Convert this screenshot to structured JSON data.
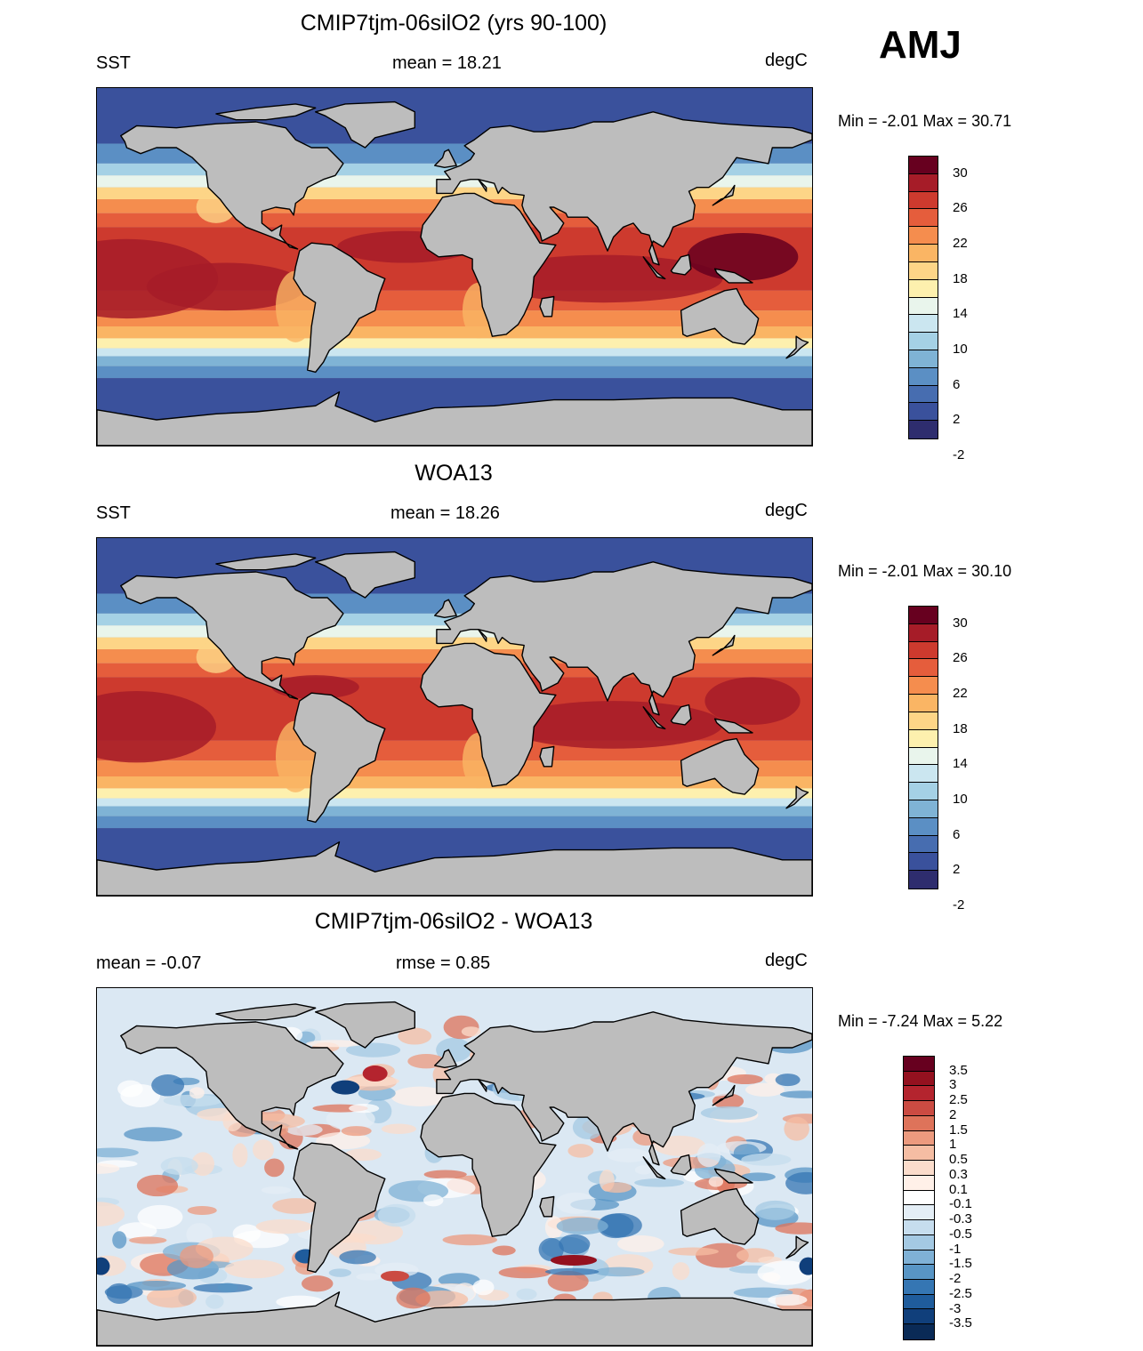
{
  "season": "AMJ",
  "units": "degC",
  "panels": [
    {
      "title": "CMIP7tjm-06silO2 (yrs 90-100)",
      "left_label": "SST",
      "center_label": "mean =  18.21",
      "right_label": "degC",
      "range_text": "Min =  -2.01 Max =  30.71",
      "colorbar": "sst"
    },
    {
      "title": "WOA13",
      "left_label": "SST",
      "center_label": "mean =  18.26",
      "right_label": "degC",
      "range_text": "Min =  -2.01 Max =  30.10",
      "colorbar": "sst"
    },
    {
      "title": "CMIP7tjm-06silO2 - WOA13",
      "left_label": "mean =  -0.07",
      "center_label": "rmse =   0.85",
      "right_label": "degC",
      "range_text": "Min =  -7.24 Max =   5.22",
      "colorbar": "diff"
    }
  ],
  "colorbars": {
    "sst": {
      "colors": [
        "#67001f",
        "#a61c28",
        "#cd3a2e",
        "#e55d3c",
        "#f58d4e",
        "#fab564",
        "#fdd587",
        "#fdf0ae",
        "#e9f5ec",
        "#cbe6f0",
        "#a5d1e5",
        "#7fb3d5",
        "#5b8fc4",
        "#476db0",
        "#3a519c",
        "#2e2d6e"
      ],
      "labels": [
        "30",
        "26",
        "22",
        "18",
        "14",
        "10",
        "6",
        "2",
        "-2"
      ]
    },
    "diff": {
      "colors": [
        "#67001f",
        "#94111f",
        "#b4242e",
        "#cb4b42",
        "#de735a",
        "#ec9a7e",
        "#f5bda3",
        "#fbdccb",
        "#fff0e8",
        "#ffffff",
        "#e4eef6",
        "#c6ddee",
        "#a4c9e3",
        "#7fb1d6",
        "#5895c5",
        "#3576b3",
        "#1f5c9c",
        "#103f7b",
        "#0a2a56"
      ],
      "labels": [
        "3.5",
        "3",
        "2.5",
        "2",
        "1.5",
        "1",
        "0.5",
        "0.3",
        "0.1",
        "-0.1",
        "-0.3",
        "-0.5",
        "-1",
        "-1.5",
        "-2",
        "-2.5",
        "-3",
        "-3.5"
      ]
    }
  },
  "sst_bands": [
    {
      "fromLat": 90,
      "toLat": 62,
      "color": "#3a519c"
    },
    {
      "fromLat": 62,
      "toLat": 52,
      "color": "#5b8fc4"
    },
    {
      "fromLat": 52,
      "toLat": 46,
      "color": "#a5d1e5"
    },
    {
      "fromLat": 46,
      "toLat": 40,
      "color": "#e9f5ec"
    },
    {
      "fromLat": 40,
      "toLat": 34,
      "color": "#fdd587"
    },
    {
      "fromLat": 34,
      "toLat": 27,
      "color": "#f58d4e"
    },
    {
      "fromLat": 27,
      "toLat": 20,
      "color": "#e55d3c"
    },
    {
      "fromLat": 20,
      "toLat": -12,
      "color": "#cd3a2e"
    },
    {
      "fromLat": -12,
      "toLat": -22,
      "color": "#e55d3c"
    },
    {
      "fromLat": -22,
      "toLat": -30,
      "color": "#f58d4e"
    },
    {
      "fromLat": -30,
      "toLat": -36,
      "color": "#fab564"
    },
    {
      "fromLat": -36,
      "toLat": -41,
      "color": "#fdf0ae"
    },
    {
      "fromLat": -41,
      "toLat": -45,
      "color": "#cbe6f0"
    },
    {
      "fromLat": -45,
      "toLat": -50,
      "color": "#7fb3d5"
    },
    {
      "fromLat": -50,
      "toLat": -56,
      "color": "#5b8fc4"
    },
    {
      "fromLat": -56,
      "toLat": -90,
      "color": "#3a519c"
    }
  ]
}
